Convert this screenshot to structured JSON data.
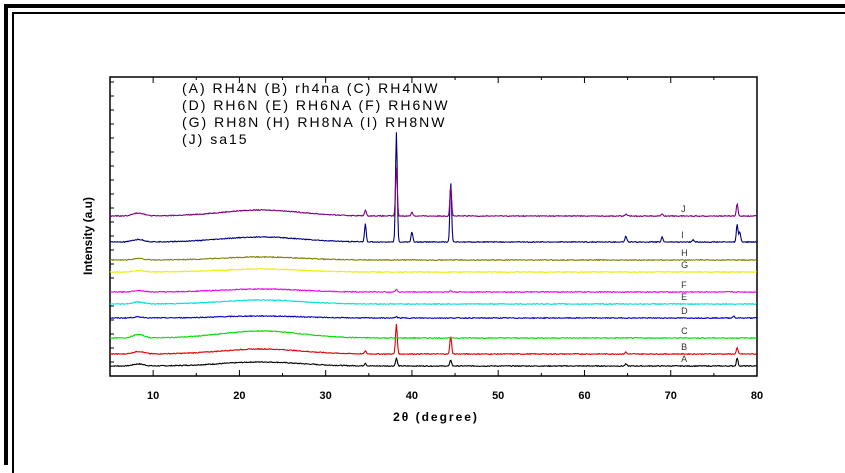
{
  "chart_data": {
    "type": "line",
    "xlabel": "2θ (degree)",
    "ylabel": "Intensity (a.u)",
    "xlim": [
      5,
      80
    ],
    "x_ticks": [
      10,
      20,
      30,
      40,
      50,
      60,
      70,
      80
    ],
    "y_ticks": "unlabeled",
    "legend_lines": [
      "(A) RH4N (B) rh4na (C) RH4NW",
      "(D) RH6N (E) RH6NA (F) RH6NW",
      "(G) RH8N (H) RH8NA (I) RH8NW",
      "(J) sa15"
    ],
    "series": [
      {
        "name": "A",
        "color": "#000000",
        "offset": 0,
        "hump": 4,
        "peaks": [
          [
            34.6,
            3
          ],
          [
            38.2,
            8
          ],
          [
            44.5,
            6
          ],
          [
            64.8,
            2
          ],
          [
            77.7,
            8
          ]
        ]
      },
      {
        "name": "B",
        "color": "#e00000",
        "offset": 12,
        "hump": 5,
        "peaks": [
          [
            34.6,
            3
          ],
          [
            38.2,
            30
          ],
          [
            44.5,
            18
          ],
          [
            64.8,
            2
          ],
          [
            77.7,
            6
          ]
        ]
      },
      {
        "name": "C",
        "color": "#00dd00",
        "offset": 28,
        "hump": 7,
        "peaks": []
      },
      {
        "name": "D",
        "color": "#0000cc",
        "offset": 48,
        "hump": 2,
        "peaks": [
          [
            38.2,
            1.5
          ],
          [
            77.3,
            2
          ]
        ]
      },
      {
        "name": "E",
        "color": "#00dddd",
        "offset": 62,
        "hump": 4,
        "peaks": []
      },
      {
        "name": "F",
        "color": "#ee00ee",
        "offset": 74,
        "hump": 3,
        "peaks": [
          [
            38.2,
            3
          ],
          [
            44.5,
            1.5
          ]
        ]
      },
      {
        "name": "G",
        "color": "#eeee00",
        "offset": 94,
        "hump": 3,
        "peaks": []
      },
      {
        "name": "H",
        "color": "#808000",
        "offset": 106,
        "hump": 3,
        "peaks": []
      },
      {
        "name": "I",
        "color": "#000080",
        "offset": 124,
        "hump": 5,
        "peaks": [
          [
            34.6,
            18
          ],
          [
            38.2,
            110
          ],
          [
            40.0,
            10
          ],
          [
            44.5,
            60
          ],
          [
            64.8,
            6
          ],
          [
            69.0,
            5
          ],
          [
            72.6,
            2
          ],
          [
            77.7,
            18
          ],
          [
            78.0,
            10
          ]
        ]
      },
      {
        "name": "J",
        "color": "#800080",
        "offset": 150,
        "hump": 6,
        "peaks": [
          [
            34.6,
            6
          ],
          [
            38.2,
            48
          ],
          [
            40.0,
            4
          ],
          [
            44.5,
            30
          ],
          [
            64.8,
            2
          ],
          [
            69.0,
            2
          ],
          [
            77.7,
            12
          ]
        ]
      }
    ]
  }
}
